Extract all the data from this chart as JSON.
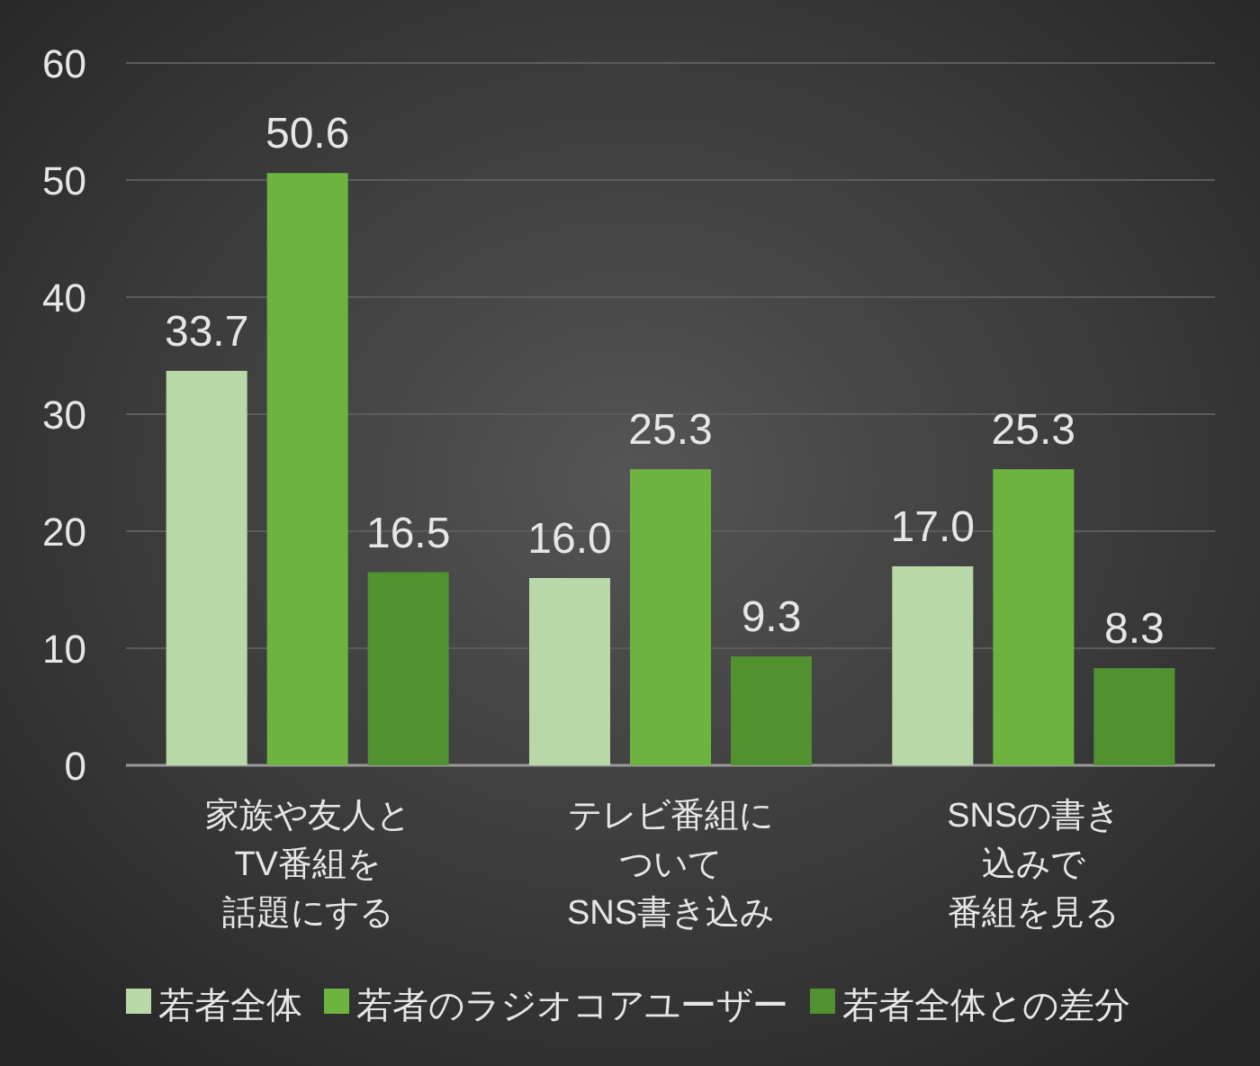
{
  "chart_data": {
    "type": "bar",
    "categories": [
      "家族や友人とTV番組を話題にする",
      "テレビ番組についてSNS書き込み",
      "SNSの書き込みで番組を見る"
    ],
    "series": [
      {
        "name": "若者全体",
        "color": "#b8d8a8",
        "values": [
          33.7,
          16.0,
          17.0
        ],
        "value_labels": [
          "33.7",
          "16.0",
          "17.0"
        ]
      },
      {
        "name": "若者のラジオコアユーザー",
        "color": "#6cb33f",
        "values": [
          50.6,
          25.3,
          25.3
        ]
      },
      {
        "name": "若者全体との差分",
        "color": "#52912f",
        "values": [
          16.5,
          9.3,
          8.3
        ]
      }
    ],
    "ylim": [
      0,
      60
    ],
    "yticks": [
      0,
      10,
      20,
      30,
      40,
      50,
      60
    ],
    "grid": "y",
    "legend": "bottom",
    "data_labels": true
  }
}
